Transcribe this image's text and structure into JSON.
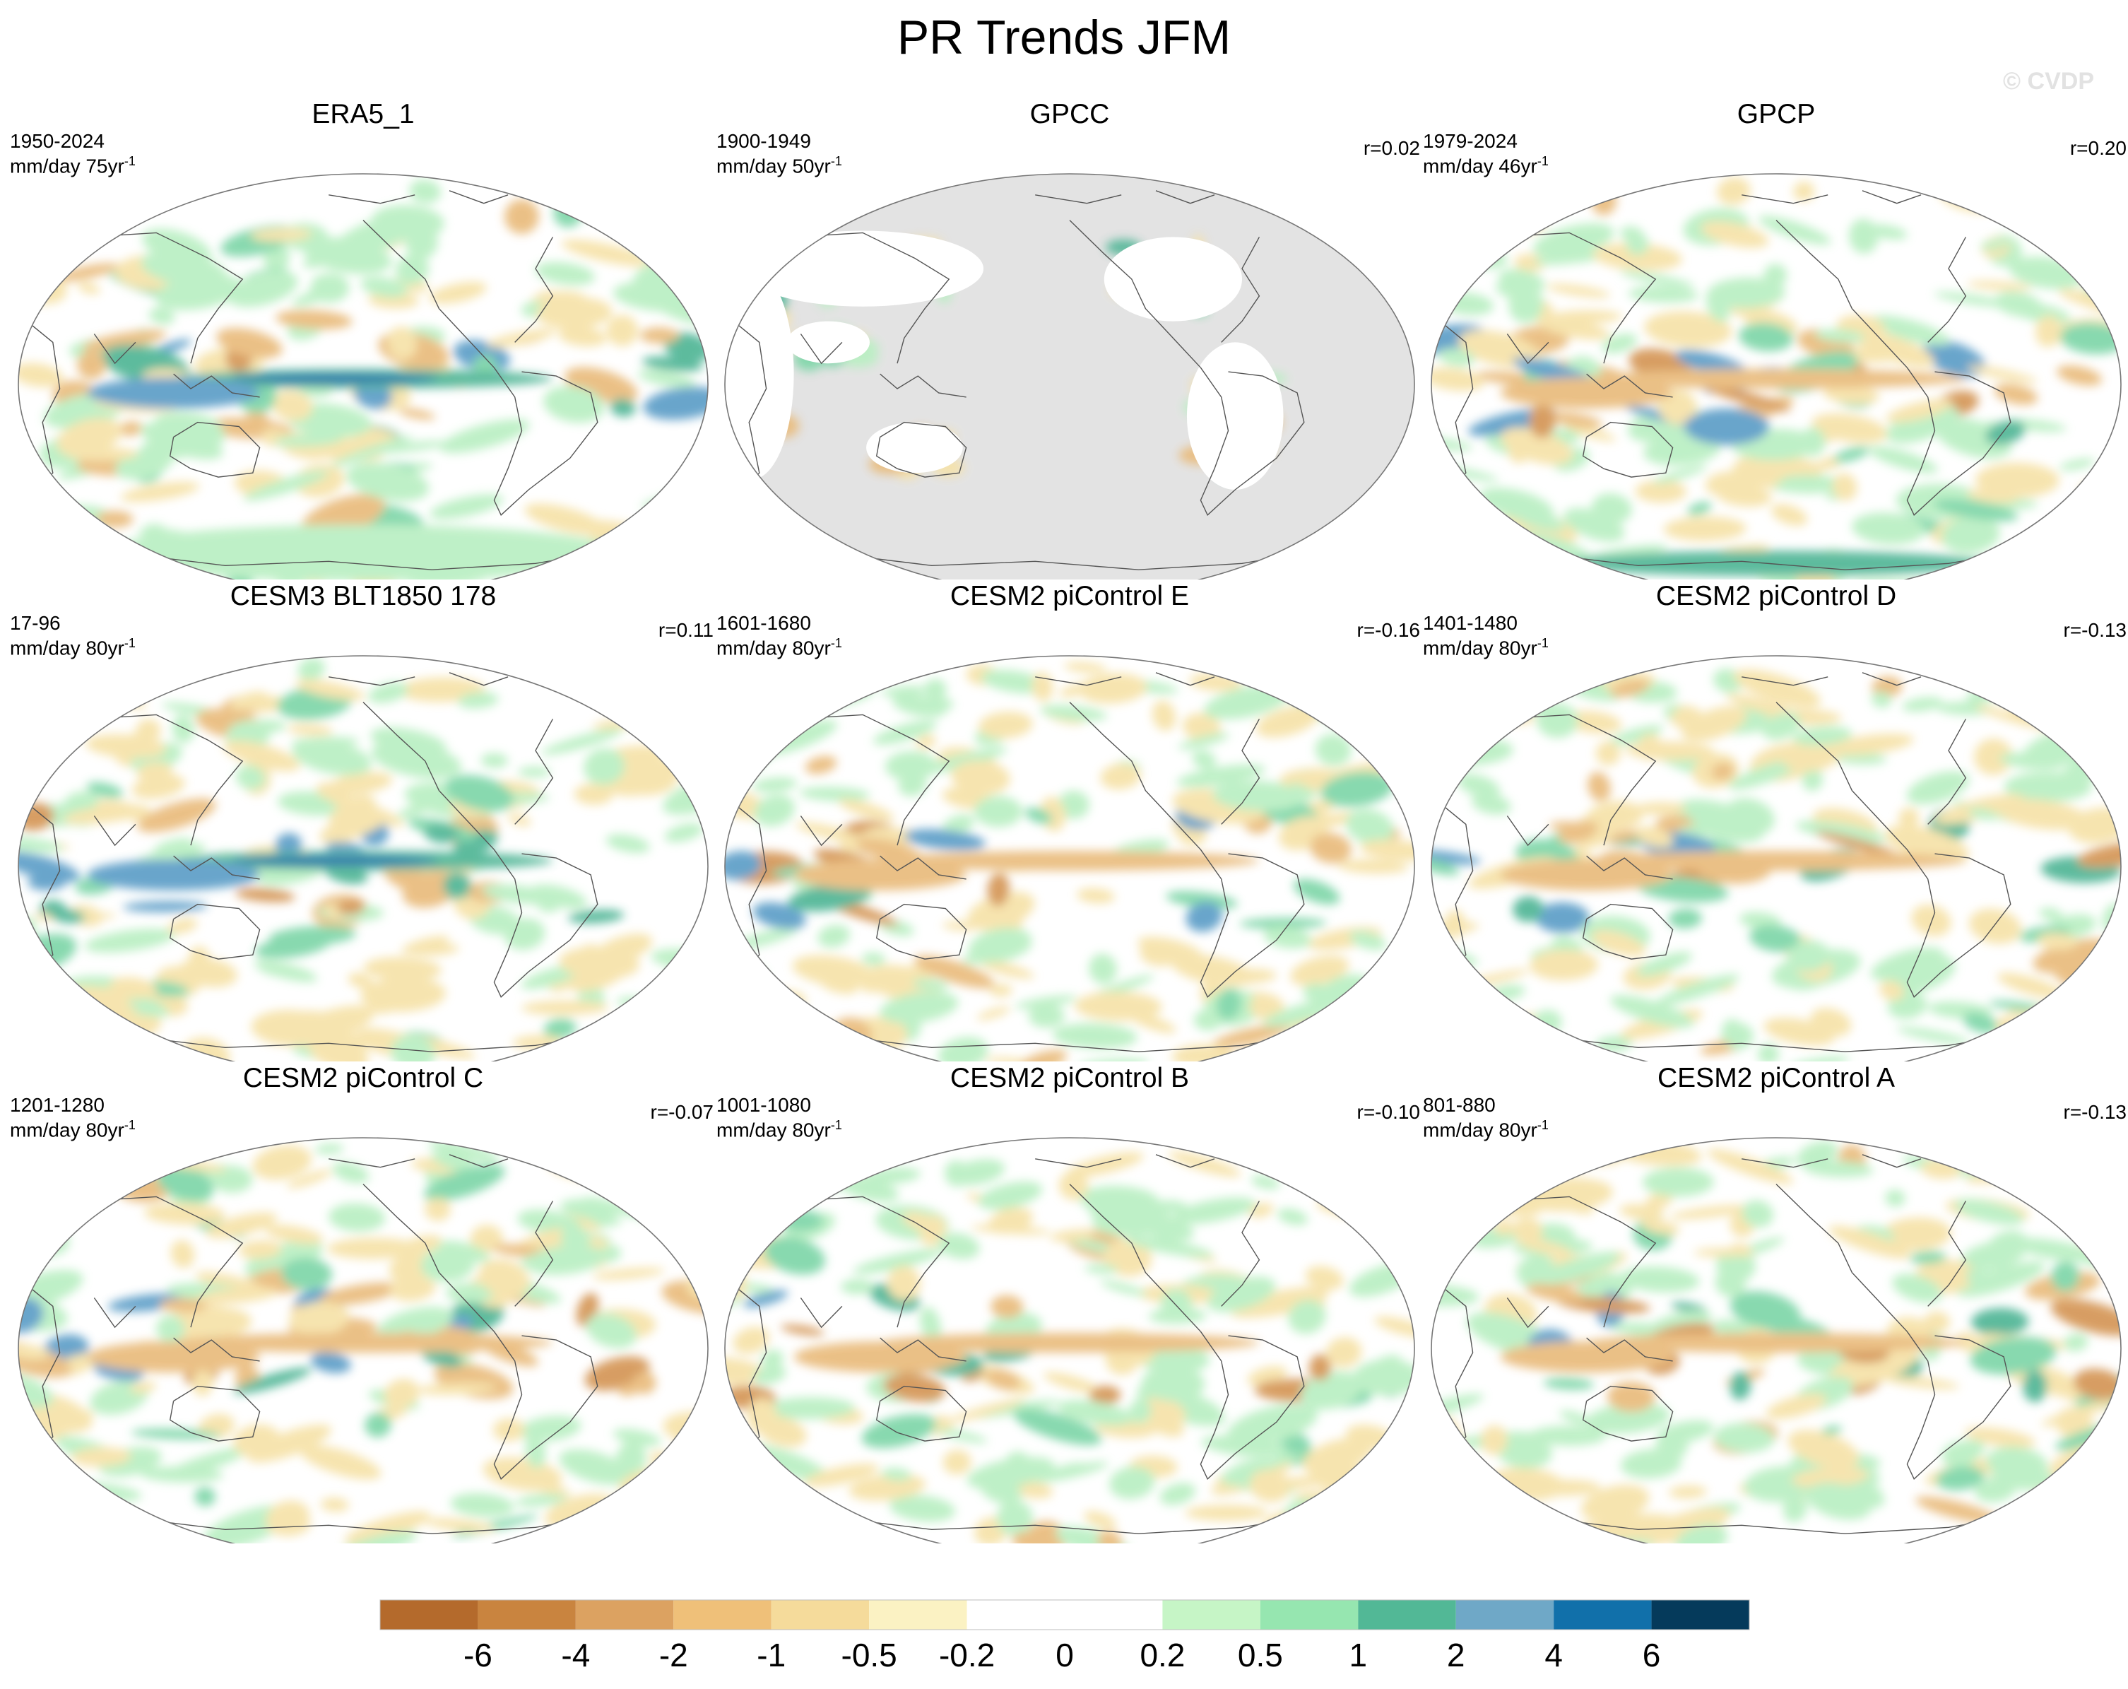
{
  "figure": {
    "title": "PR Trends JFM",
    "watermark": "© CVDP"
  },
  "panels": [
    {
      "title": "ERA5_1",
      "period": "1950-2024",
      "units": "mm/day 75yr",
      "units_sup": "-1",
      "r": "",
      "background": "#ffffff"
    },
    {
      "title": "GPCC",
      "period": "1900-1949",
      "units": "mm/day 50yr",
      "units_sup": "-1",
      "r": "r=0.02",
      "background": "#e3e3e3"
    },
    {
      "title": "GPCP",
      "period": "1979-2024",
      "units": "mm/day 46yr",
      "units_sup": "-1",
      "r": "r=0.20",
      "background": "#ffffff"
    },
    {
      "title": "CESM3 BLT1850 178",
      "period": "17-96",
      "units": "mm/day 80yr",
      "units_sup": "-1",
      "r": "r=0.11",
      "background": "#ffffff"
    },
    {
      "title": "CESM2 piControl E",
      "period": "1601-1680",
      "units": "mm/day 80yr",
      "units_sup": "-1",
      "r": "r=-0.16",
      "background": "#ffffff"
    },
    {
      "title": "CESM2 piControl D",
      "period": "1401-1480",
      "units": "mm/day 80yr",
      "units_sup": "-1",
      "r": "r=-0.13",
      "background": "#ffffff"
    },
    {
      "title": "CESM2 piControl C",
      "period": "1201-1280",
      "units": "mm/day 80yr",
      "units_sup": "-1",
      "r": "r=-0.07",
      "background": "#ffffff"
    },
    {
      "title": "CESM2 piControl B",
      "period": "1001-1080",
      "units": "mm/day 80yr",
      "units_sup": "-1",
      "r": "r=-0.10",
      "background": "#ffffff"
    },
    {
      "title": "CESM2 piControl A",
      "period": "801-880",
      "units": "mm/day 80yr",
      "units_sup": "-1",
      "r": "r=-0.13",
      "background": "#ffffff"
    }
  ],
  "colorbar": {
    "colors": [
      "#b46a2c",
      "#c9843f",
      "#dca261",
      "#efc079",
      "#f5db9b",
      "#fbf2c3",
      "#ffffff",
      "#ffffff",
      "#c6f5c6",
      "#96e6b0",
      "#52b896",
      "#6fa8c7",
      "#1170aa",
      "#053a5b"
    ],
    "labels": [
      "-6",
      "-4",
      "-2",
      "-1",
      "-0.5",
      "-0.2",
      "0",
      "0.2",
      "0.5",
      "1",
      "2",
      "4",
      "6"
    ]
  },
  "palette": {
    "dry_strong": "#d49555",
    "dry_mid": "#e9bb7c",
    "dry_light": "#f6e2a8",
    "wet_light": "#b9efc2",
    "wet_mid": "#7ed6a8",
    "wet_teal": "#4fb595",
    "wet_blue": "#5b9dc7",
    "wet_deep": "#1b6aa8",
    "coast": "#555555",
    "frame": "#777777"
  }
}
